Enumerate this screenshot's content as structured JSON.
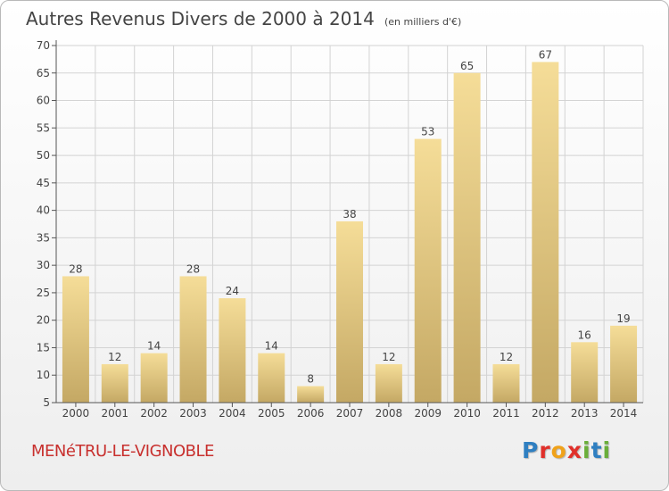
{
  "title": "Autres Revenus Divers de 2000 à 2014",
  "unit": "(en milliers d'€)",
  "location": "MENéTRU-LE-VIGNOBLE",
  "logo": {
    "text": "Proxiti",
    "letters": [
      {
        "char": "P",
        "color": "#2f7fc1"
      },
      {
        "char": "r",
        "color": "#e0302a"
      },
      {
        "char": "o",
        "color": "#f0a21a"
      },
      {
        "char": "x",
        "color": "#e0302a"
      },
      {
        "char": "i",
        "color": "#6aae3a"
      },
      {
        "char": "t",
        "color": "#2f7fc1"
      },
      {
        "char": "i",
        "color": "#6aae3a"
      }
    ]
  },
  "colors": {
    "bar_light": "#f5dd98",
    "bar_dark": "#c4a864",
    "axis": "#555555",
    "grid": "#d3d3d3",
    "text": "#444444"
  },
  "chart_data": {
    "type": "bar",
    "title": "Autres Revenus Divers de 2000 à 2014",
    "xlabel": "",
    "ylabel": "",
    "categories": [
      "2000",
      "2001",
      "2002",
      "2003",
      "2004",
      "2005",
      "2006",
      "2007",
      "2008",
      "2009",
      "2010",
      "2011",
      "2012",
      "2013",
      "2014"
    ],
    "values": [
      28,
      12,
      14,
      28,
      24,
      14,
      8,
      38,
      12,
      53,
      65,
      12,
      67,
      16,
      19
    ],
    "ylim": [
      5,
      70
    ],
    "yticks": [
      5,
      10,
      15,
      20,
      25,
      30,
      35,
      40,
      45,
      50,
      55,
      60,
      65,
      70
    ],
    "grid": true,
    "legend": "none"
  }
}
